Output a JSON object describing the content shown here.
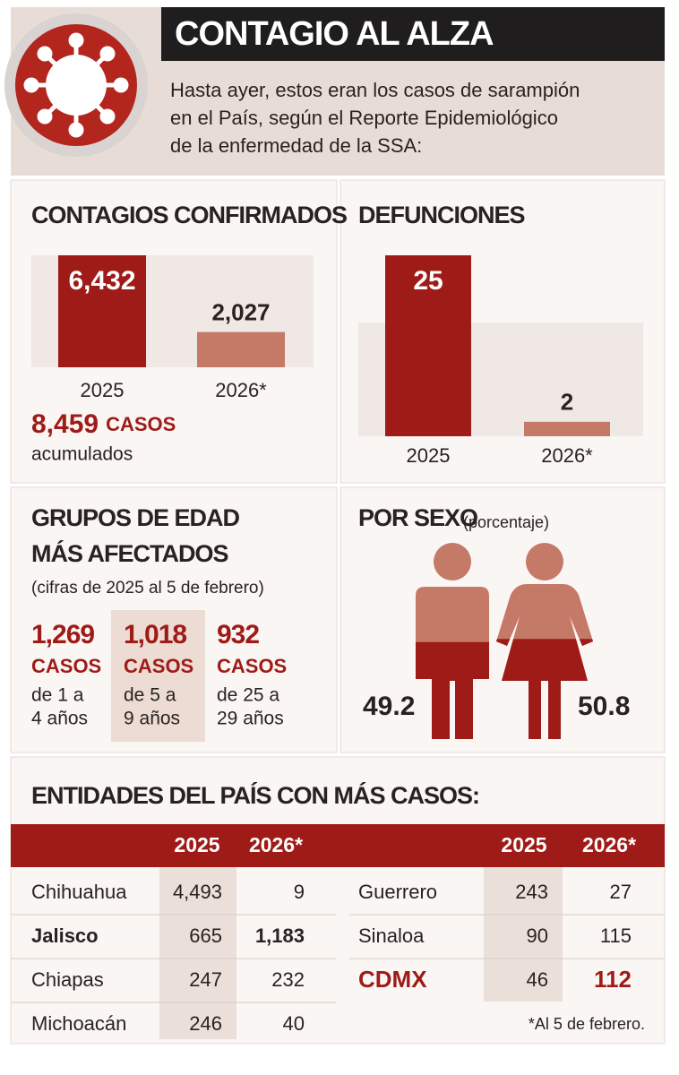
{
  "header": {
    "title": "CONTAGIO AL ALZA",
    "subtitle_lines": [
      "Hasta ayer, estos eran los casos de sarampión",
      "en el País, según el Reporte Epidemiológico",
      "de la enfermedad de la SSA:"
    ]
  },
  "chart_data": [
    {
      "type": "bar",
      "title": "CONTAGIOS CONFIRMADOS",
      "categories": [
        "2025",
        "2026*"
      ],
      "values": [
        6432,
        2027
      ],
      "value_labels": [
        "6,432",
        "2,027"
      ],
      "colors": [
        "#9e1b17",
        "#c47a67"
      ],
      "total": {
        "label": "8,459",
        "unit": "CASOS",
        "note": "acumulados"
      }
    },
    {
      "type": "bar",
      "title": "DEFUNCIONES",
      "categories": [
        "2025",
        "2026*"
      ],
      "values": [
        25,
        2
      ],
      "colors": [
        "#9e1b17",
        "#c47a67"
      ]
    },
    {
      "type": "pictogram",
      "title": "POR SEXO",
      "subtitle": "(porcentaje)",
      "values": [
        49.2,
        50.8
      ],
      "colors": [
        "#c47a67",
        "#9e1b17"
      ]
    }
  ],
  "age_groups": {
    "title_lines": [
      "GRUPOS DE EDAD",
      "MÁS AFECTADOS"
    ],
    "note": "(cifras de 2025 al 5 de febrero)",
    "groups": [
      {
        "value": "1,269",
        "unit": "CASOS",
        "range_lines": [
          "de 1 a",
          "4 años"
        ]
      },
      {
        "value": "1,018",
        "unit": "CASOS",
        "range_lines": [
          "de 5 a",
          "9 años"
        ],
        "highlight": true
      },
      {
        "value": "932",
        "unit": "CASOS",
        "range_lines": [
          "de 25 a",
          "29 años"
        ]
      }
    ]
  },
  "table": {
    "title": "ENTIDADES DEL PAÍS CON MÁS CASOS:",
    "columns": [
      "2025",
      "2026*"
    ],
    "left": [
      {
        "cells": [
          "Chihuahua",
          "4,493",
          "9"
        ]
      },
      {
        "cells": [
          "Jalisco",
          "665",
          "1,183"
        ],
        "emphasis": "bold"
      },
      {
        "cells": [
          "Chiapas",
          "247",
          "232"
        ]
      },
      {
        "cells": [
          "Michoacán",
          "246",
          "40"
        ]
      }
    ],
    "right": [
      {
        "cells": [
          "Guerrero",
          "243",
          "27"
        ]
      },
      {
        "cells": [
          "Sinaloa",
          "90",
          "115"
        ]
      },
      {
        "cells": [
          "CDMX",
          "46",
          "112"
        ],
        "emphasis": "red"
      }
    ],
    "footnote": "*Al 5 de febrero."
  }
}
